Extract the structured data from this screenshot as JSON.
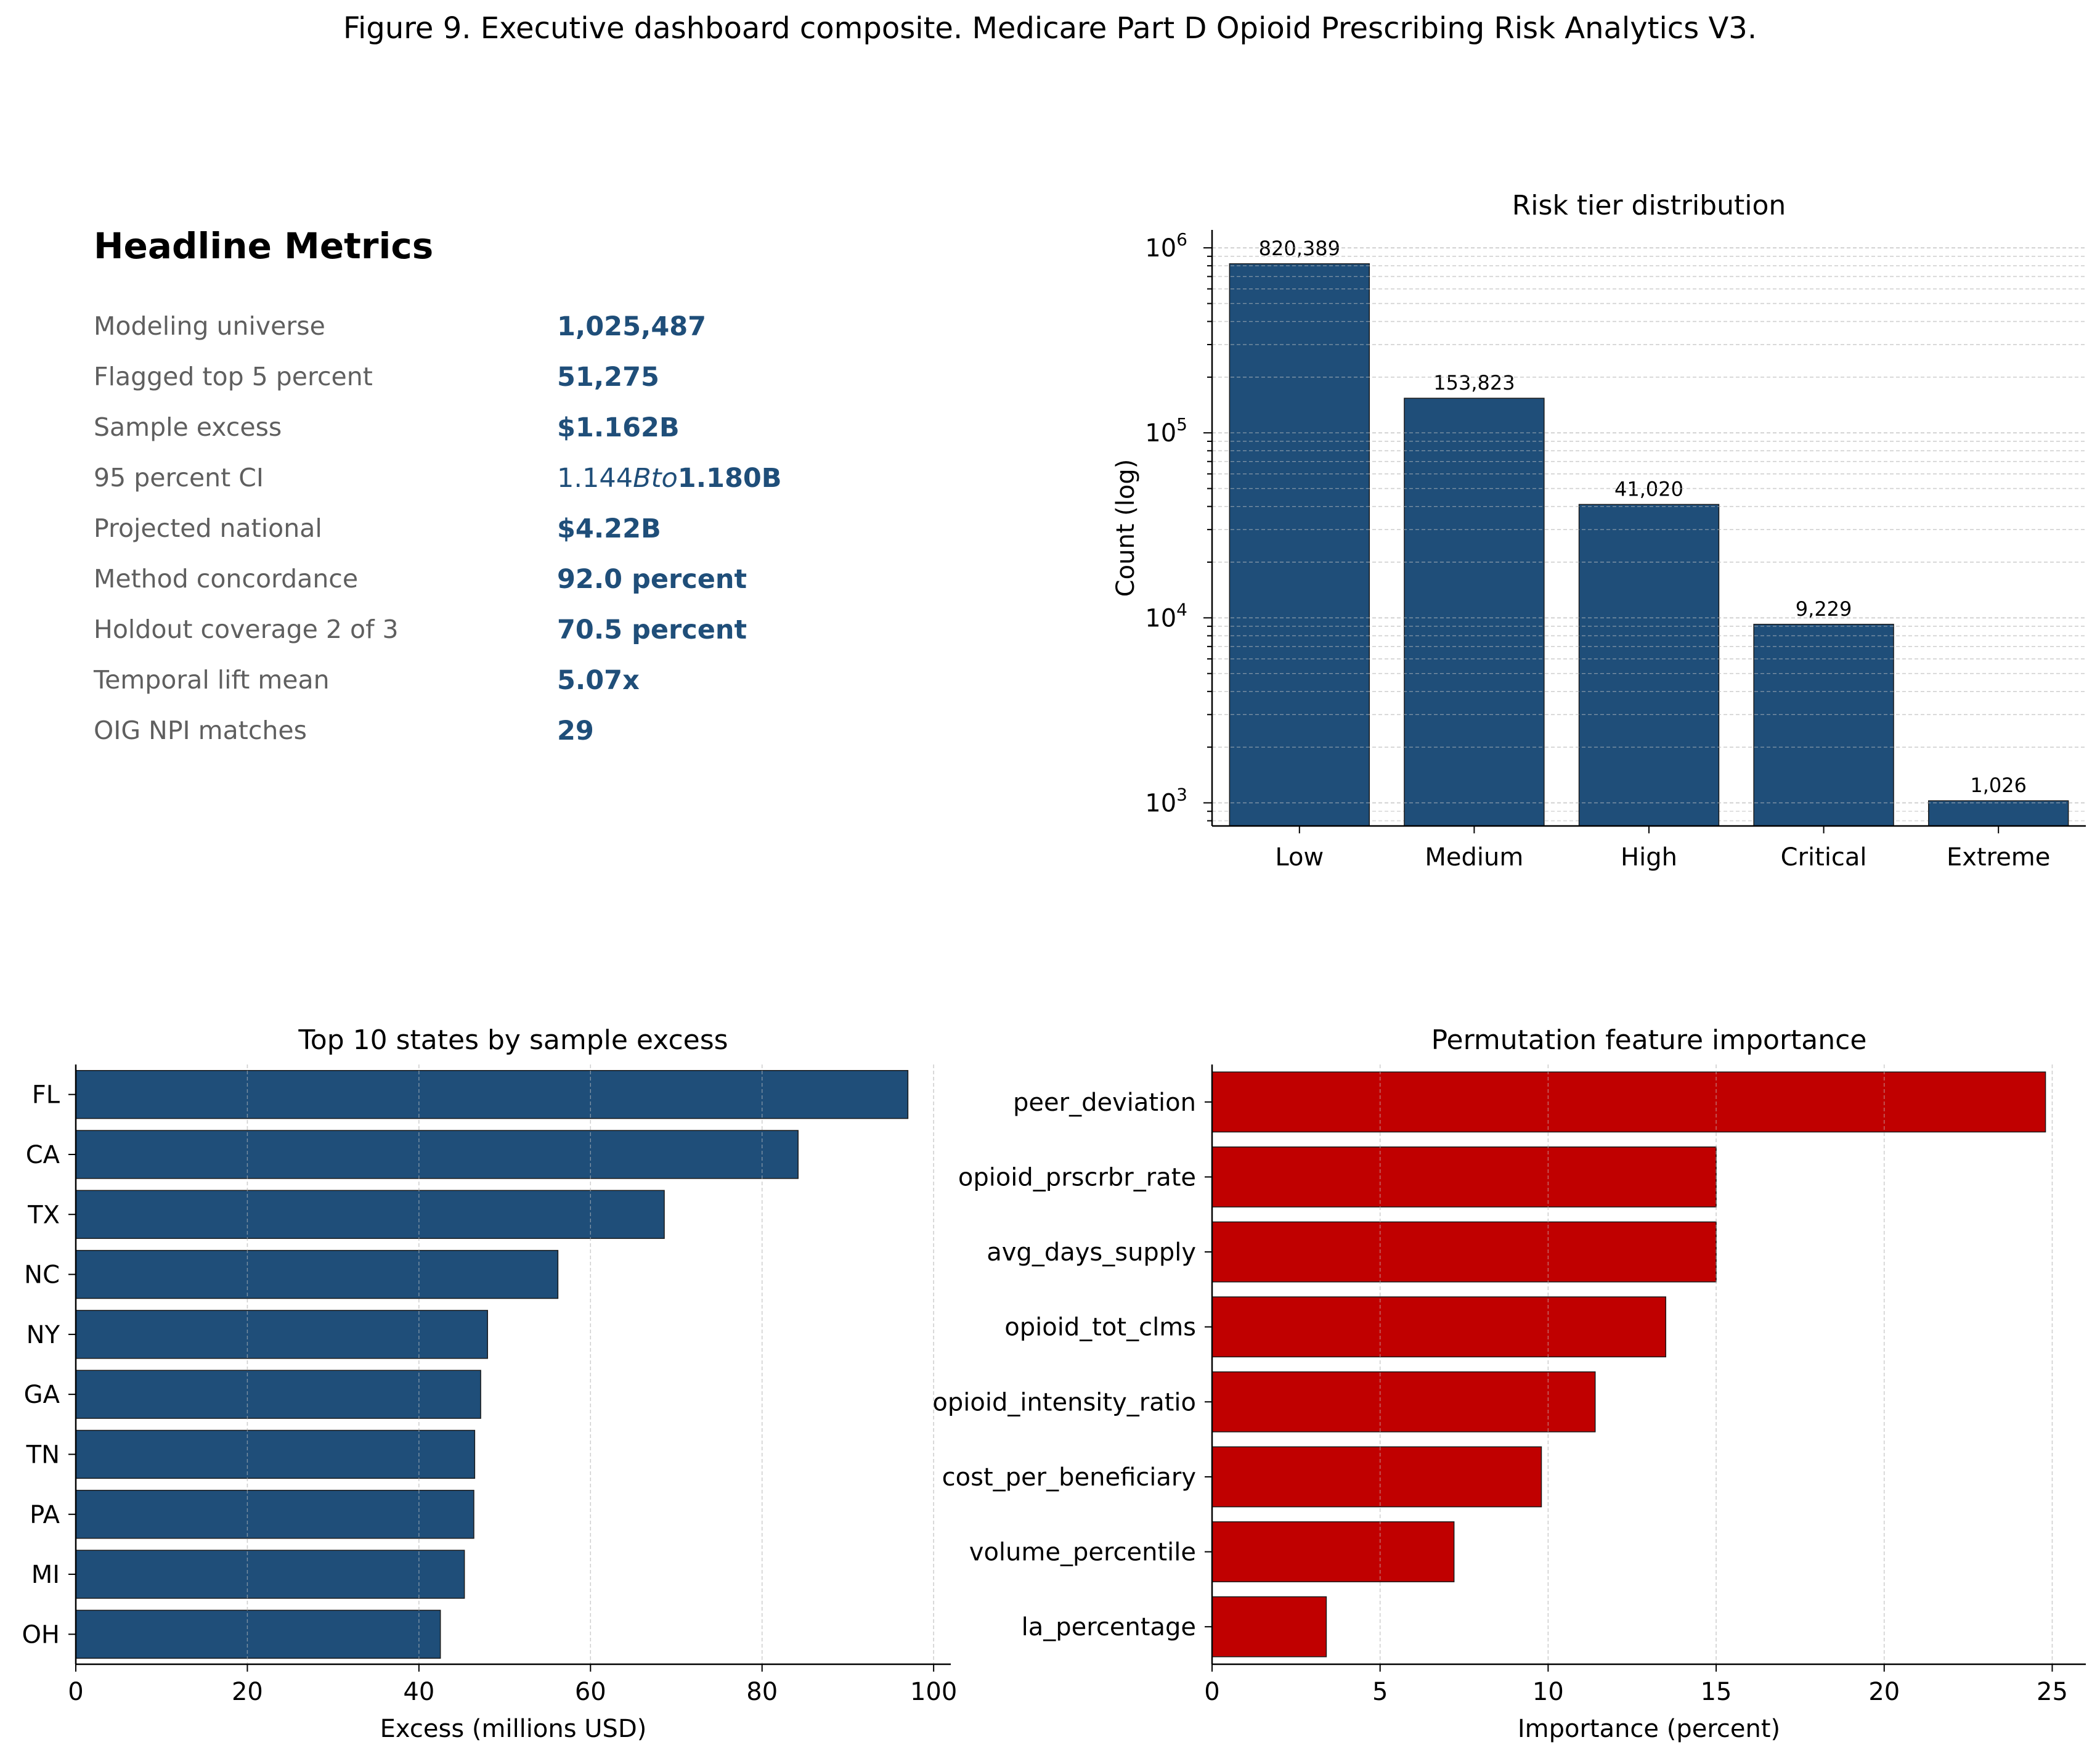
{
  "figure_title": "Figure 9. Executive dashboard composite. Medicare Part D Opioid Prescribing Risk Analytics V3.",
  "headline": {
    "heading": "Headline Metrics",
    "metrics": [
      {
        "label": "Modeling universe",
        "value": "1,025,487"
      },
      {
        "label": "Flagged top 5 percent",
        "value": "51,275"
      },
      {
        "label": "Sample excess",
        "value": "$1.162B"
      },
      {
        "label": "95 percent CI",
        "value_parts": [
          "1.144",
          "Bto",
          "1.180B"
        ]
      },
      {
        "label": "Projected national",
        "value": "$4.22B"
      },
      {
        "label": "Method concordance",
        "value": "92.0 percent"
      },
      {
        "label": "Holdout coverage 2 of 3",
        "value": "70.5 percent"
      },
      {
        "label": "Temporal lift mean",
        "value": "5.07x"
      },
      {
        "label": "OIG NPI matches",
        "value": "29"
      }
    ],
    "value_color": "#1f4e79",
    "label_color": "#5f5f5f"
  },
  "chart_data": [
    {
      "type": "bar",
      "title": "Risk tier distribution",
      "xlabel": "",
      "ylabel": "Count (log)",
      "yscale": "log",
      "ylim": [
        750,
        1250000
      ],
      "ytick_labels": [
        {
          "value": 1000,
          "base": "10",
          "exp": "3"
        },
        {
          "value": 10000,
          "base": "10",
          "exp": "4"
        },
        {
          "value": 100000,
          "base": "10",
          "exp": "5"
        },
        {
          "value": 1000000,
          "base": "10",
          "exp": "6"
        }
      ],
      "categories": [
        "Low",
        "Medium",
        "High",
        "Critical",
        "Extreme"
      ],
      "values": [
        820389,
        153823,
        41020,
        9229,
        1026
      ],
      "data_labels": [
        "820,389",
        "153,823",
        "41,020",
        "9,229",
        "1,026"
      ],
      "color": "#1f4e79",
      "grid": "y (major and minor)"
    },
    {
      "type": "barh",
      "title": "Top 10 states by sample excess",
      "xlabel": "Excess (millions USD)",
      "ylabel": "",
      "xlim": [
        0,
        102
      ],
      "xticks": [
        0,
        20,
        40,
        60,
        80,
        100
      ],
      "categories": [
        "FL",
        "CA",
        "TX",
        "NC",
        "NY",
        "GA",
        "TN",
        "PA",
        "MI",
        "OH"
      ],
      "values": [
        97.0,
        84.2,
        68.6,
        56.2,
        48.0,
        47.2,
        46.5,
        46.4,
        45.3,
        42.5
      ],
      "color": "#1f4e79",
      "grid": "x"
    },
    {
      "type": "barh",
      "title": "Permutation feature importance",
      "xlabel": "Importance (percent)",
      "ylabel": "",
      "xlim": [
        0,
        26
      ],
      "xticks": [
        0,
        5,
        10,
        15,
        20,
        25
      ],
      "categories": [
        "peer_deviation",
        "opioid_prscrbr_rate",
        "avg_days_supply",
        "opioid_tot_clms",
        "opioid_intensity_ratio",
        "cost_per_beneficiary",
        "volume_percentile",
        "la_percentage"
      ],
      "values": [
        24.8,
        15.0,
        15.0,
        13.5,
        11.4,
        9.8,
        7.2,
        3.4
      ],
      "color": "#c00000",
      "grid": "x"
    }
  ]
}
